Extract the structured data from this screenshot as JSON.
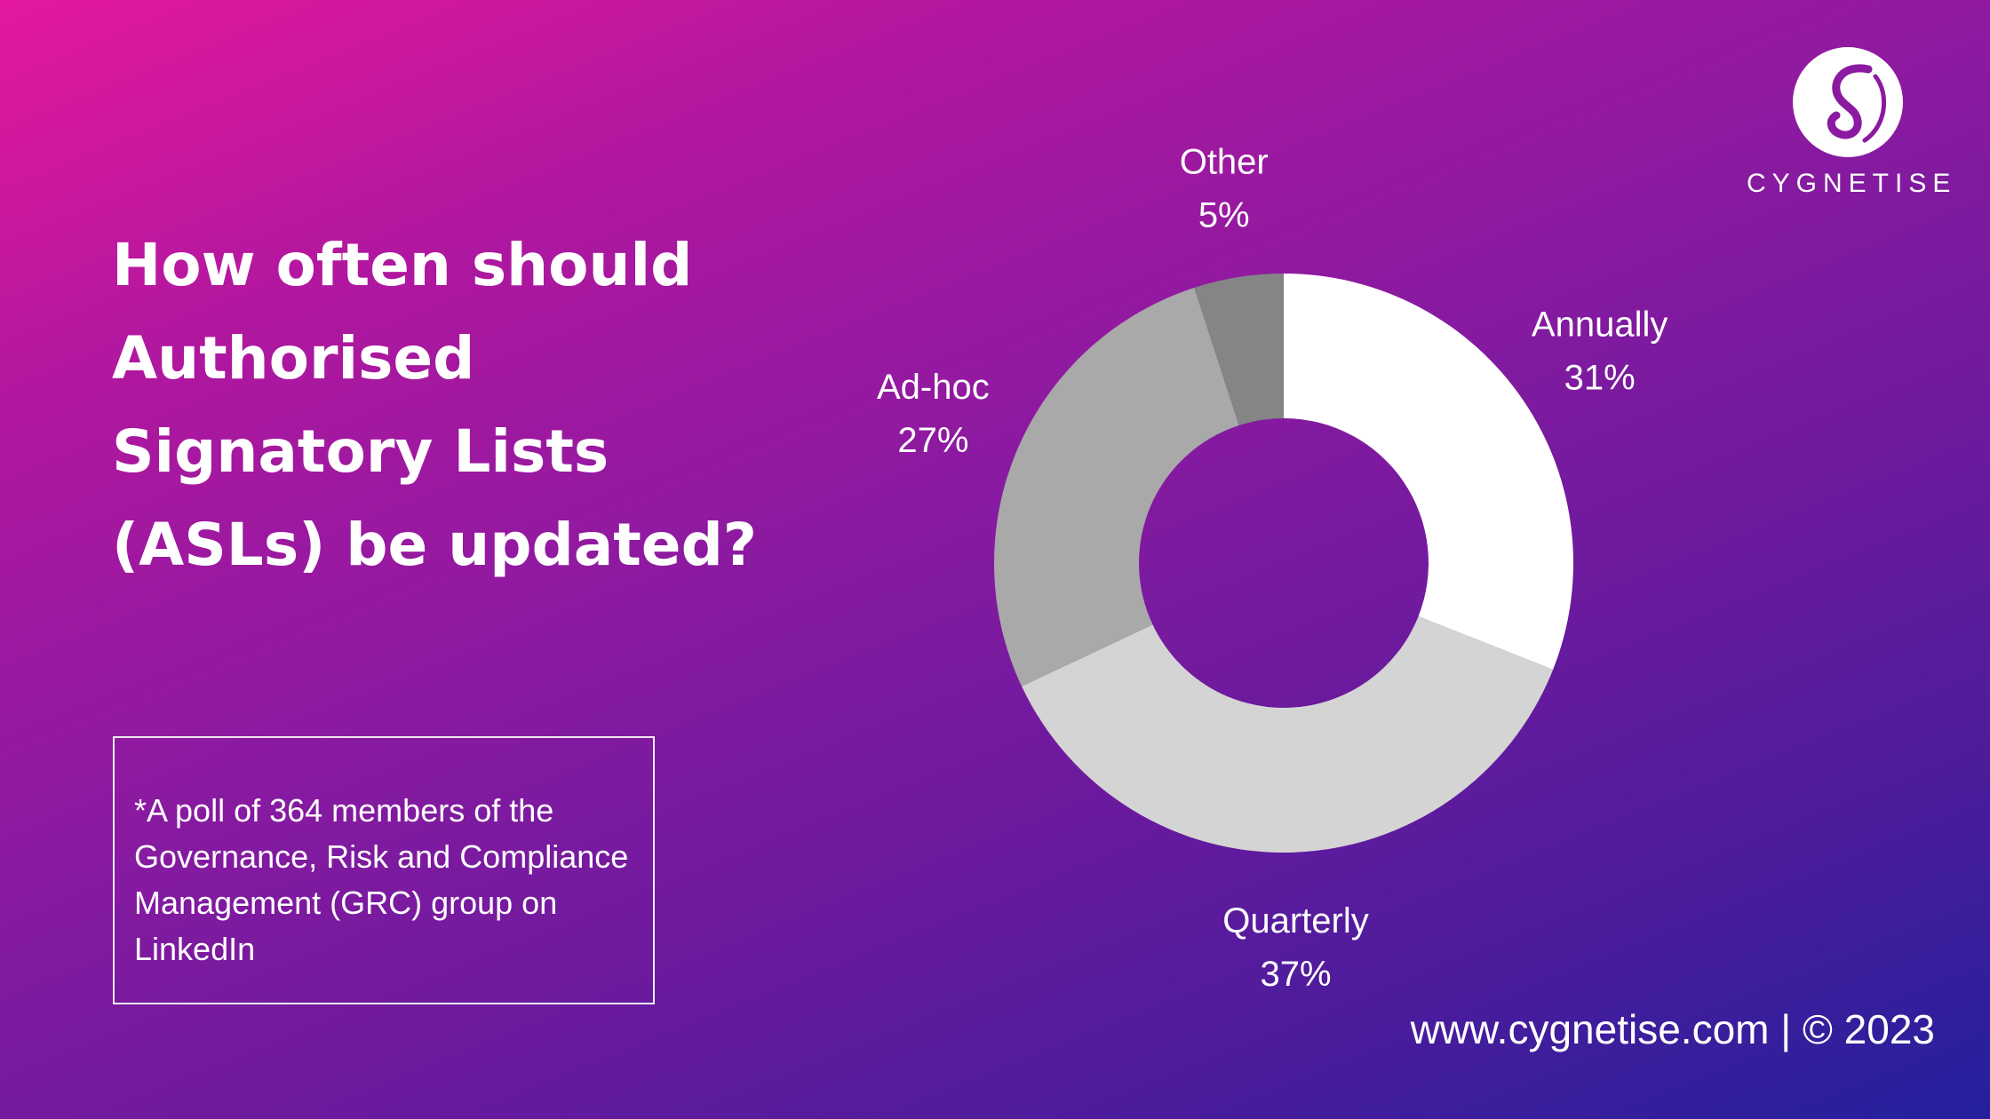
{
  "title": "How often should Authorised Signatory Lists (ASLs) be updated?",
  "note": "*A poll of 364 members of the Governance, Risk and Compliance Management (GRC) group on LinkedIn",
  "footer": "www.cygnetise.com | © 2023",
  "logo": {
    "wordmark": "CYGNETISE",
    "icon": "swan-logo-icon"
  },
  "chart_data": {
    "type": "pie",
    "variant": "donut",
    "title": "",
    "categories": [
      "Annually",
      "Quarterly",
      "Ad-hoc",
      "Other"
    ],
    "values": [
      31,
      37,
      27,
      5
    ],
    "value_labels": [
      "31%",
      "37%",
      "27%",
      "5%"
    ],
    "colors": [
      "#ffffff",
      "#d4d4d4",
      "#a9a9a9",
      "#858585"
    ],
    "legend": "none"
  }
}
